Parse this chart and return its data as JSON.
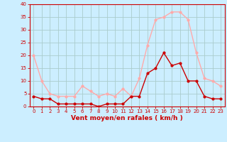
{
  "hours": [
    0,
    1,
    2,
    3,
    4,
    5,
    6,
    7,
    8,
    9,
    10,
    11,
    12,
    13,
    14,
    15,
    16,
    17,
    18,
    19,
    20,
    21,
    22,
    23
  ],
  "vent_moyen": [
    4,
    3,
    3,
    1,
    1,
    1,
    1,
    1,
    0,
    1,
    1,
    1,
    4,
    4,
    13,
    15,
    21,
    16,
    17,
    10,
    10,
    4,
    3,
    3
  ],
  "rafales": [
    20,
    10,
    5,
    4,
    4,
    4,
    8,
    6,
    4,
    5,
    4,
    7,
    4,
    11,
    24,
    34,
    35,
    37,
    37,
    34,
    21,
    11,
    10,
    8
  ],
  "color_moyen": "#cc0000",
  "color_rafales": "#ffaaaa",
  "bg_color": "#cceeff",
  "grid_color": "#aacccc",
  "xlabel": "Vent moyen/en rafales ( km/h )",
  "xlabel_color": "#cc0000",
  "ylim": [
    0,
    40
  ],
  "yticks": [
    0,
    5,
    10,
    15,
    20,
    25,
    30,
    35,
    40
  ],
  "marker_size": 2.0,
  "linewidth": 1.0,
  "tick_fontsize": 5.0,
  "xlabel_fontsize": 6.5
}
